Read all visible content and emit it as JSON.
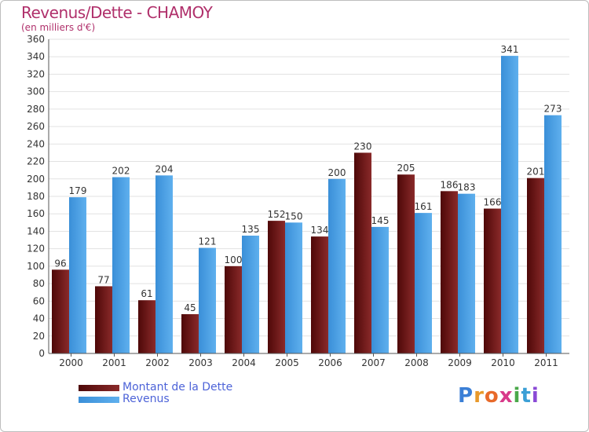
{
  "header": {
    "title": "Revenus/Dette - CHAMOY",
    "subtitle": "(en milliers d'€)"
  },
  "colors": {
    "dette": "#6b0e0e",
    "revenus": "#4ea4e6",
    "axis_text": "#333333",
    "grid": "#e2e2e2"
  },
  "chart_data": {
    "type": "bar",
    "title": "Revenus/Dette - CHAMOY",
    "ylabel": "(en milliers d'€)",
    "xlabel": "",
    "ylim": [
      0,
      360
    ],
    "ytick_step": 20,
    "grid": true,
    "legend_position": "bottom-left",
    "categories": [
      "2000",
      "2001",
      "2002",
      "2003",
      "2004",
      "2005",
      "2006",
      "2007",
      "2008",
      "2009",
      "2010",
      "2011"
    ],
    "series": [
      {
        "name": "Montant de la Dette",
        "values": [
          96,
          77,
          61,
          45,
          100,
          152,
          134,
          230,
          205,
          186,
          166,
          201
        ]
      },
      {
        "name": "Revenus",
        "values": [
          179,
          202,
          204,
          121,
          135,
          150,
          200,
          145,
          161,
          183,
          341,
          273
        ]
      }
    ]
  },
  "legend": {
    "items": [
      {
        "label": "Montant de la Dette"
      },
      {
        "label": "Revenus"
      }
    ]
  },
  "logo": {
    "letters": [
      "P",
      "r",
      "o",
      "x",
      "i",
      "t",
      "i"
    ]
  }
}
